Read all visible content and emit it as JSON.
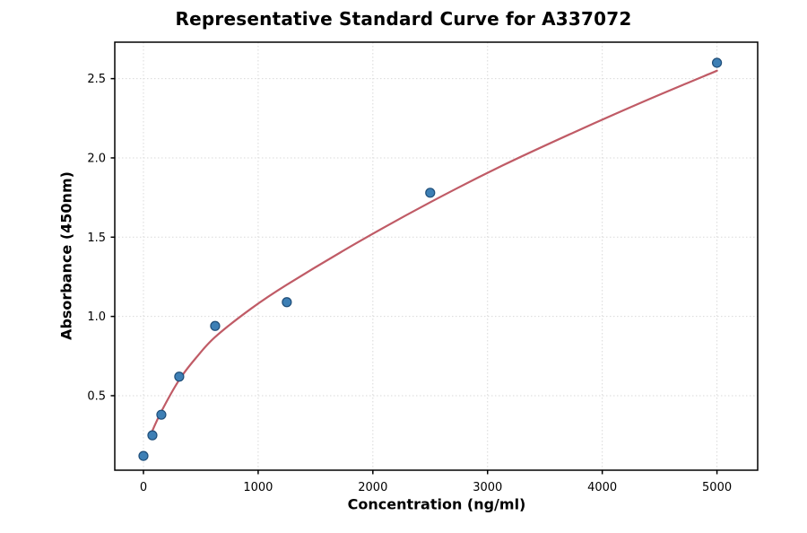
{
  "chart_data": {
    "type": "scatter",
    "title": "Representative Standard Curve for A337072",
    "xlabel": "Concentration (ng/ml)",
    "ylabel": "Absorbance (450nm)",
    "xlim": [
      -250,
      5355
    ],
    "ylim": [
      0.03,
      2.73
    ],
    "x_ticks": [
      0,
      1000,
      2000,
      3000,
      4000,
      5000
    ],
    "x_tick_labels": [
      "0",
      "1000",
      "2000",
      "3000",
      "4000",
      "5000"
    ],
    "y_ticks": [
      0.5,
      1.0,
      1.5,
      2.0,
      2.5
    ],
    "y_tick_labels": [
      "0.5",
      "1.0",
      "1.5",
      "2.0",
      "2.5"
    ],
    "grid": true,
    "legend": "none",
    "points": {
      "x": [
        0,
        78,
        156,
        312,
        625,
        1250,
        2500,
        5000
      ],
      "y": [
        0.12,
        0.25,
        0.38,
        0.62,
        0.94,
        1.09,
        1.78,
        2.6
      ]
    },
    "fit_curve": {
      "x": [
        60,
        156,
        312,
        460,
        625,
        940,
        1250,
        1875,
        2500,
        3125,
        3750,
        4375,
        5000
      ],
      "y": [
        0.25,
        0.4,
        0.6,
        0.74,
        0.87,
        1.05,
        1.2,
        1.47,
        1.72,
        1.95,
        2.16,
        2.36,
        2.55
      ]
    },
    "colors": {
      "point_fill": "#3d7fb5",
      "point_edge": "#1f4e79",
      "curve": "#c05b66",
      "grid": "#d9d9d9",
      "axis": "#000000",
      "text": "#000000"
    }
  }
}
